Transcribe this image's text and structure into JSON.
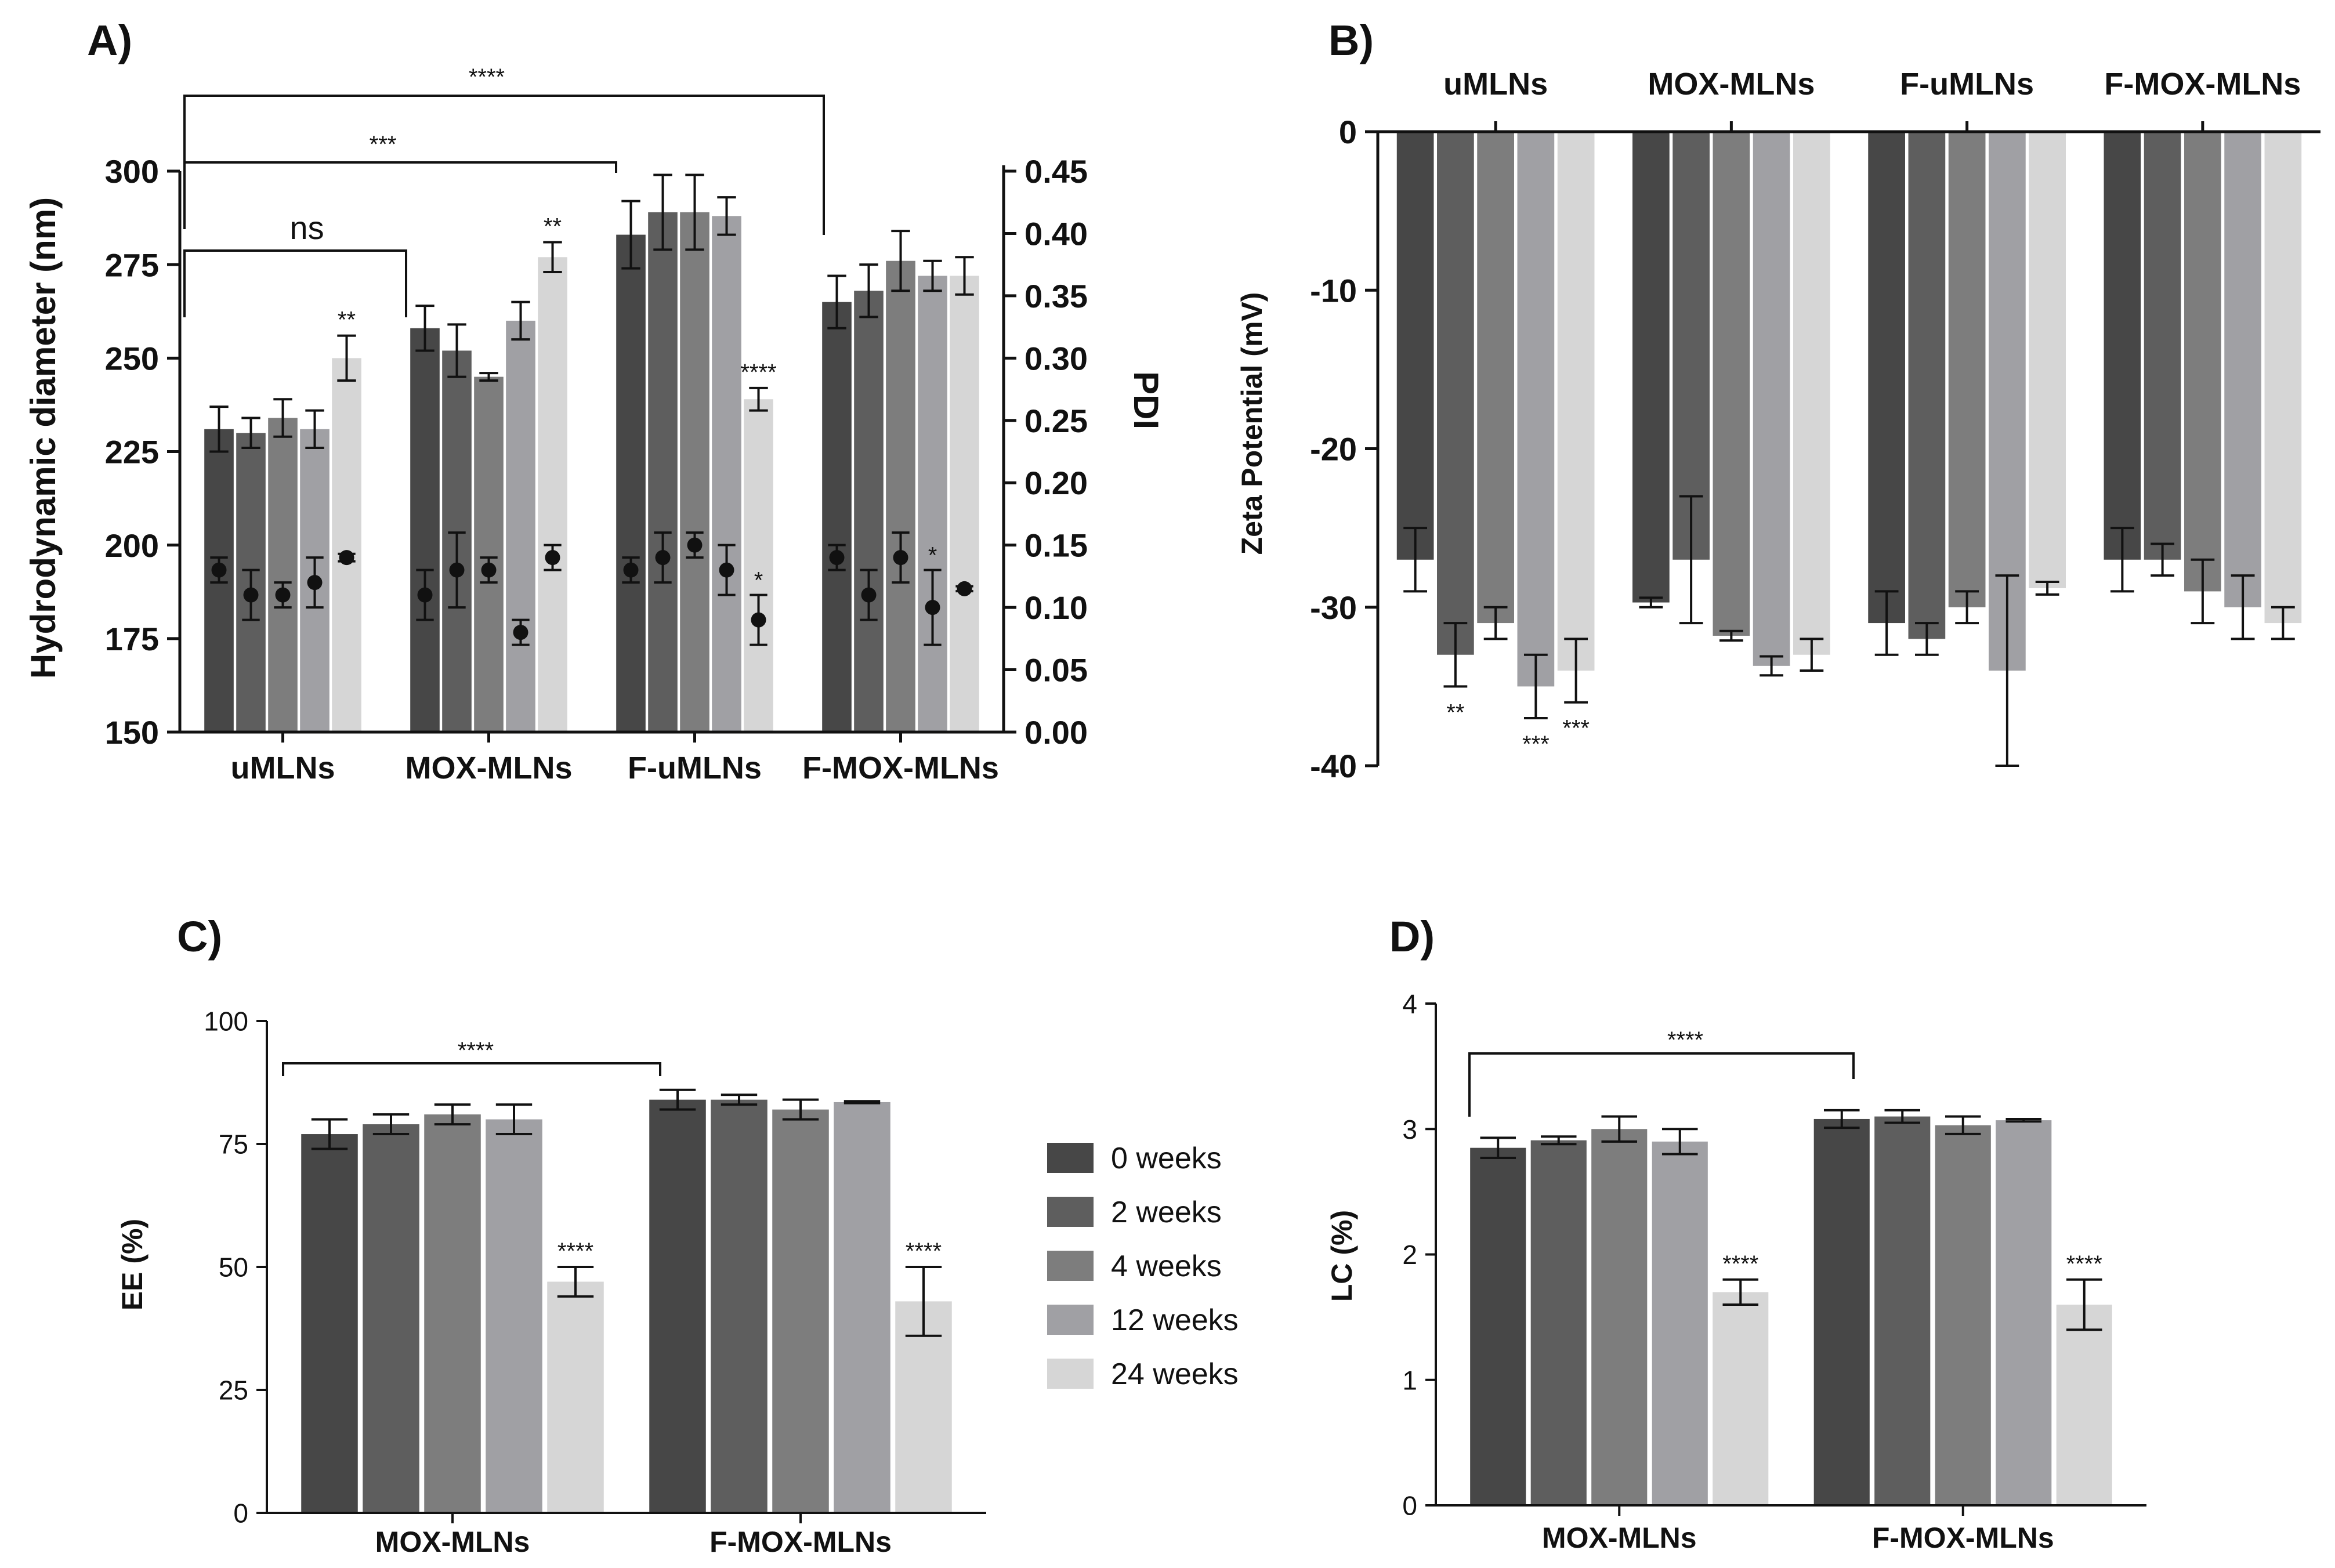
{
  "legend": {
    "items": [
      {
        "label": "0 weeks",
        "color": "#474747"
      },
      {
        "label": "2 weeks",
        "color": "#5e5e5e"
      },
      {
        "label": "4 weeks",
        "color": "#7d7d7d"
      },
      {
        "label": "12 weeks",
        "color": "#a0a0a4"
      },
      {
        "label": "24 weeks",
        "color": "#d6d6d6"
      }
    ]
  },
  "chart_data": [
    {
      "panel": "A)",
      "type": "bar",
      "ylabel": "Hydrodynamic diameter (nm)",
      "y2label": "PDI",
      "ylim": [
        150,
        300
      ],
      "yticks": [
        "150",
        "175",
        "200",
        "225",
        "250",
        "275",
        "300"
      ],
      "y2lim": [
        0,
        0.45
      ],
      "y2ticks": [
        "0.00",
        "0.05",
        "0.10",
        "0.15",
        "0.20",
        "0.25",
        "0.30",
        "0.35",
        "0.40",
        "0.45"
      ],
      "categories": [
        "uMLNs",
        "MOX-MLNs",
        "F-uMLNs",
        "F-MOX-MLNs"
      ],
      "series": [
        {
          "name": "0 weeks",
          "values": [
            231,
            258,
            283,
            265
          ],
          "errors": [
            6,
            6,
            9,
            7
          ]
        },
        {
          "name": "2 weeks",
          "values": [
            230,
            252,
            289,
            268
          ],
          "errors": [
            4,
            7,
            10,
            7
          ]
        },
        {
          "name": "4 weeks",
          "values": [
            234,
            245,
            289,
            276
          ],
          "errors": [
            5,
            1,
            10,
            8
          ]
        },
        {
          "name": "12 weeks",
          "values": [
            231,
            260,
            288,
            272
          ],
          "errors": [
            5,
            5,
            5,
            4
          ]
        },
        {
          "name": "24 weeks",
          "values": [
            250,
            277,
            239,
            272
          ],
          "errors": [
            6,
            4,
            3,
            5
          ]
        }
      ],
      "pdi_series": [
        {
          "values": [
            0.13,
            0.11,
            0.13,
            0.14
          ],
          "errors": [
            0.01,
            0.02,
            0.01,
            0.01
          ]
        },
        {
          "values": [
            0.11,
            0.13,
            0.14,
            0.11
          ],
          "errors": [
            0.02,
            0.03,
            0.02,
            0.02
          ]
        },
        {
          "values": [
            0.11,
            0.13,
            0.15,
            0.14
          ],
          "errors": [
            0.01,
            0.01,
            0.01,
            0.02
          ]
        },
        {
          "values": [
            0.12,
            0.08,
            0.13,
            0.1
          ],
          "errors": [
            0.02,
            0.01,
            0.02,
            0.03
          ]
        },
        {
          "values": [
            0.14,
            0.14,
            0.09,
            0.115
          ],
          "errors": [
            0.003,
            0.01,
            0.02,
            0.002
          ]
        }
      ],
      "bar_annotations": [
        {
          "group": 0,
          "series": 4,
          "text": "**"
        },
        {
          "group": 1,
          "series": 4,
          "text": "**"
        },
        {
          "group": 2,
          "series": 4,
          "text": "****"
        }
      ],
      "pdi_annotations": [
        {
          "group": 2,
          "series": 4,
          "text": "*"
        },
        {
          "group": 3,
          "series": 3,
          "text": "*"
        }
      ],
      "comparisons": [
        {
          "from": 0,
          "to": 1,
          "text": "ns"
        },
        {
          "from": 0,
          "to": 2,
          "text": "***"
        },
        {
          "from": 0,
          "to": 3,
          "text": "****"
        }
      ]
    },
    {
      "panel": "B)",
      "type": "bar",
      "ylabel": "Zeta Potential (mV)",
      "ylim": [
        -40,
        0
      ],
      "yticks": [
        "0",
        "-10",
        "-20",
        "-30",
        "-40"
      ],
      "categories": [
        "uMLNs",
        "MOX-MLNs",
        "F-uMLNs",
        "F-MOX-MLNs"
      ],
      "series": [
        {
          "name": "0 weeks",
          "values": [
            -27,
            -29.7,
            -31,
            -27
          ],
          "errors": [
            2,
            0.3,
            2,
            2
          ]
        },
        {
          "name": "2 weeks",
          "values": [
            -33,
            -27,
            -32,
            -27
          ],
          "errors": [
            2,
            4,
            1,
            1
          ]
        },
        {
          "name": "4 weeks",
          "values": [
            -31,
            -31.8,
            -30,
            -29
          ],
          "errors": [
            1,
            0.3,
            1,
            2
          ]
        },
        {
          "name": "12 weeks",
          "values": [
            -35,
            -33.7,
            -34,
            -30
          ],
          "errors": [
            2,
            0.6,
            6,
            2
          ]
        },
        {
          "name": "24 weeks",
          "values": [
            -34,
            -33,
            -28.8,
            -31
          ],
          "errors": [
            2,
            1,
            0.4,
            1
          ]
        }
      ],
      "annotations": [
        {
          "group": 0,
          "series": 1,
          "text": "**"
        },
        {
          "group": 0,
          "series": 3,
          "text": "***"
        },
        {
          "group": 0,
          "series": 4,
          "text": "***"
        }
      ]
    },
    {
      "panel": "C)",
      "type": "bar",
      "ylabel": "EE (%)",
      "ylim": [
        0,
        100
      ],
      "yticks": [
        "0",
        "25",
        "50",
        "75",
        "100"
      ],
      "categories": [
        "MOX-MLNs",
        "F-MOX-MLNs"
      ],
      "series": [
        {
          "name": "0 weeks",
          "values": [
            77,
            84
          ],
          "errors": [
            3,
            2
          ]
        },
        {
          "name": "2 weeks",
          "values": [
            79,
            84
          ],
          "errors": [
            2,
            1
          ]
        },
        {
          "name": "4 weeks",
          "values": [
            81,
            82
          ],
          "errors": [
            2,
            2
          ]
        },
        {
          "name": "12 weeks",
          "values": [
            80,
            83.5
          ],
          "errors": [
            3,
            0.2
          ]
        },
        {
          "name": "24 weeks",
          "values": [
            47,
            43
          ],
          "errors": [
            3,
            7
          ]
        }
      ],
      "annotations": [
        {
          "group": 0,
          "series": 4,
          "text": "****"
        },
        {
          "group": 1,
          "series": 4,
          "text": "****"
        }
      ],
      "comparisons": [
        {
          "from": 0,
          "to": 1,
          "text": "****"
        }
      ]
    },
    {
      "panel": "D)",
      "type": "bar",
      "ylabel": "LC  (%)",
      "ylim": [
        0,
        4
      ],
      "yticks": [
        "0",
        "1",
        "2",
        "3",
        "4"
      ],
      "categories": [
        "MOX-MLNs",
        "F-MOX-MLNs"
      ],
      "series": [
        {
          "name": "0 weeks",
          "values": [
            2.85,
            3.08
          ],
          "errors": [
            0.08,
            0.07
          ]
        },
        {
          "name": "2 weeks",
          "values": [
            2.91,
            3.1
          ],
          "errors": [
            0.03,
            0.05
          ]
        },
        {
          "name": "4 weeks",
          "values": [
            3.0,
            3.03
          ],
          "errors": [
            0.1,
            0.07
          ]
        },
        {
          "name": "12 weeks",
          "values": [
            2.9,
            3.07
          ],
          "errors": [
            0.1,
            0.01
          ]
        },
        {
          "name": "24 weeks",
          "values": [
            1.7,
            1.6
          ],
          "errors": [
            0.1,
            0.2
          ]
        }
      ],
      "annotations": [
        {
          "group": 0,
          "series": 4,
          "text": "****"
        },
        {
          "group": 1,
          "series": 4,
          "text": "****"
        }
      ],
      "comparisons": [
        {
          "from": 0,
          "to": 1,
          "text": "****"
        }
      ]
    }
  ]
}
